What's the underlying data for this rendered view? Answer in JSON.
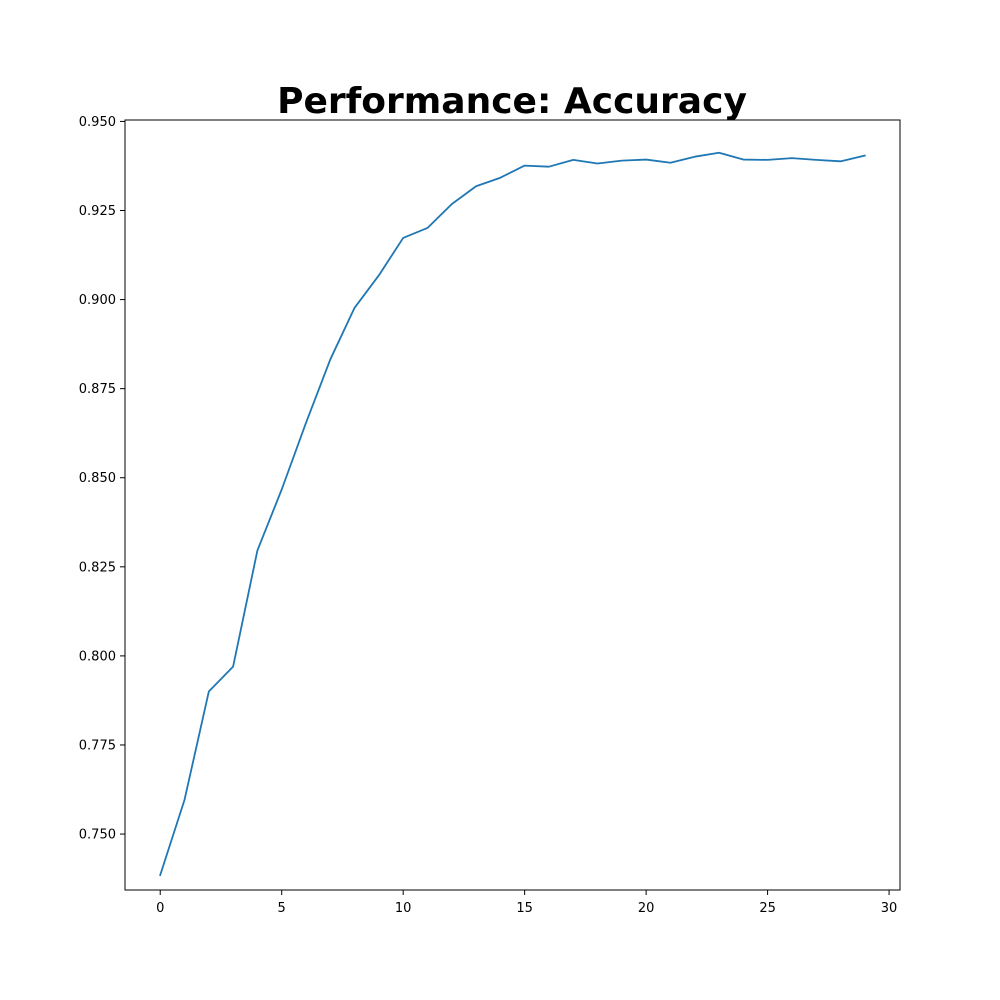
{
  "chart_data": {
    "type": "line",
    "title": "Performance: Accuracy",
    "xlabel": "",
    "ylabel": "",
    "xlim": [
      -1.45,
      30.45
    ],
    "ylim": [
      0.7343,
      0.9504
    ],
    "xticks": [
      0,
      5,
      10,
      15,
      20,
      25,
      30
    ],
    "yticks": [
      0.75,
      0.775,
      0.8,
      0.825,
      0.85,
      0.875,
      0.9,
      0.925,
      0.95
    ],
    "xtick_labels": [
      "0",
      "5",
      "10",
      "15",
      "20",
      "25",
      "30"
    ],
    "ytick_labels": [
      "0.750",
      "0.775",
      "0.800",
      "0.825",
      "0.850",
      "0.875",
      "0.900",
      "0.925",
      "0.950"
    ],
    "grid": false,
    "series": [
      {
        "color": "#1f77b4",
        "x": [
          0,
          1,
          2,
          3,
          4,
          5,
          6,
          7,
          8,
          9,
          10,
          11,
          12,
          13,
          14,
          15,
          16,
          17,
          18,
          19,
          20,
          21,
          22,
          23,
          24,
          25,
          26,
          27,
          28,
          29
        ],
        "y": [
          0.7385,
          0.7596,
          0.79,
          0.797,
          0.8296,
          0.8467,
          0.8654,
          0.8832,
          0.8977,
          0.9068,
          0.9173,
          0.9201,
          0.9268,
          0.9318,
          0.9342,
          0.9376,
          0.9373,
          0.9392,
          0.9382,
          0.939,
          0.9393,
          0.9384,
          0.9401,
          0.9412,
          0.9393,
          0.9392,
          0.9397,
          0.9392,
          0.9388,
          0.9404
        ]
      }
    ]
  }
}
